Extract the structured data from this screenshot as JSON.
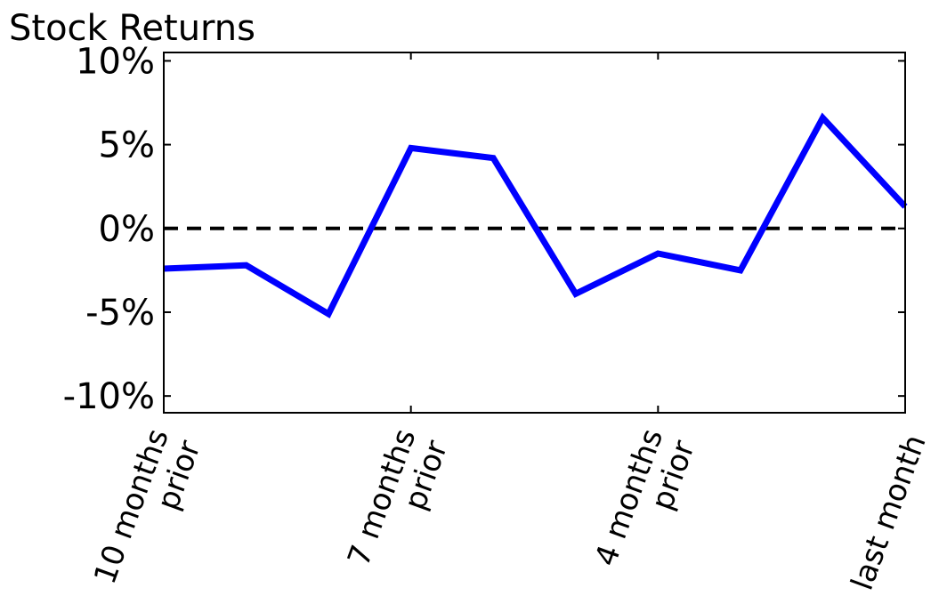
{
  "chart_data": {
    "type": "line",
    "title": "Stock Returns",
    "xlabel": "",
    "ylabel": "",
    "ylim": [
      -11,
      10.5
    ],
    "yticks": [
      {
        "value": 10,
        "label": "10%"
      },
      {
        "value": 5,
        "label": "5%"
      },
      {
        "value": 0,
        "label": "0%"
      },
      {
        "value": -5,
        "label": "-5%"
      },
      {
        "value": -10,
        "label": "-10%"
      }
    ],
    "x": [
      0,
      1,
      2,
      3,
      4,
      5,
      6,
      7,
      8,
      9
    ],
    "xlim": [
      0,
      9
    ],
    "xticks": [
      {
        "value": 0,
        "lines": [
          "10 months",
          "prior"
        ]
      },
      {
        "value": 3,
        "lines": [
          "7 months",
          "prior"
        ]
      },
      {
        "value": 6,
        "lines": [
          "4 months",
          "prior"
        ]
      },
      {
        "value": 9,
        "lines": [
          "last month"
        ]
      }
    ],
    "series": [
      {
        "values": [
          -2.4,
          -2.2,
          -5.1,
          4.8,
          4.2,
          -3.9,
          -1.5,
          -2.5,
          6.6,
          1.3
        ],
        "color": "#0000ff"
      }
    ],
    "reference_line": {
      "value": 0,
      "style": "dashed",
      "color": "#000000"
    },
    "grid": false
  }
}
